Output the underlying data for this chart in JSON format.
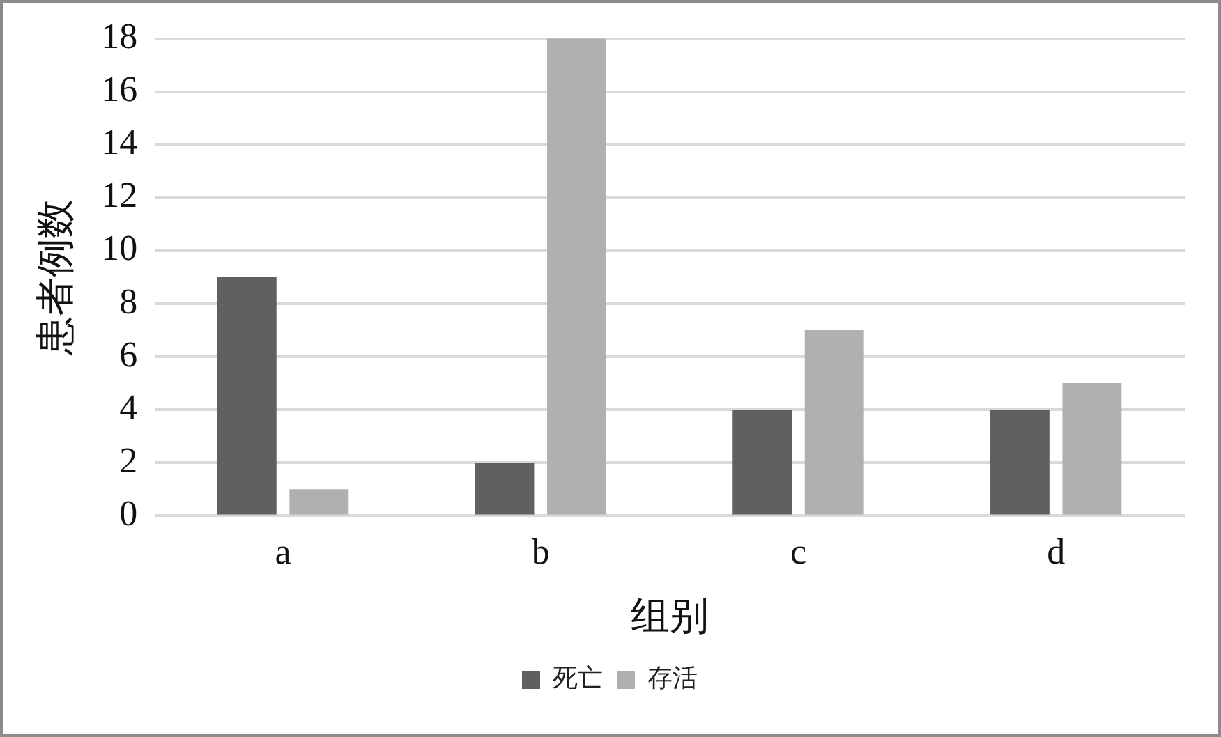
{
  "chart_data": {
    "type": "bar",
    "xlabel": "组别",
    "ylabel": "患者例数",
    "categories": [
      "a",
      "b",
      "c",
      "d"
    ],
    "series": [
      {
        "name": "死亡",
        "color": "#606060",
        "values": [
          9,
          2,
          4,
          4
        ]
      },
      {
        "name": "存活",
        "color": "#b0b0b0",
        "values": [
          1,
          18,
          7,
          5
        ]
      }
    ],
    "ylim": [
      0,
      18
    ],
    "yticks": [
      0,
      2,
      4,
      6,
      8,
      10,
      12,
      14,
      16,
      18
    ],
    "grid": "y",
    "legend": "bottom"
  }
}
